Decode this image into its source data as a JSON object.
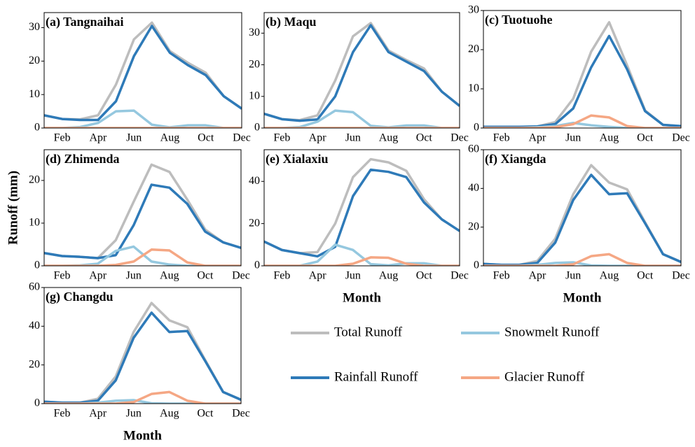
{
  "chart_data": [
    {
      "type": "line",
      "title": "(a) Tangnaihai",
      "categories": [
        null,
        "Feb",
        null,
        "Apr",
        null,
        "Jun",
        null,
        "Aug",
        null,
        "Oct",
        null,
        "Dec"
      ],
      "ylim": [
        0,
        34.5
      ],
      "yticks": [
        0,
        10,
        20,
        30
      ],
      "series": [
        {
          "name": "Total Runoff",
          "color": "#bdbdbd",
          "values": [
            3.8,
            2.7,
            2.6,
            3.8,
            13,
            26.5,
            31.5,
            23,
            19.5,
            16.5,
            9.5,
            5.8
          ]
        },
        {
          "name": "Rainfall Runoff",
          "color": "#2e7ab8",
          "values": [
            3.8,
            2.7,
            2.4,
            2.4,
            8,
            21.5,
            30.5,
            22.5,
            18.8,
            15.8,
            9.5,
            5.8
          ]
        },
        {
          "name": "Snowmelt Runoff",
          "color": "#95c8df",
          "values": [
            0,
            0,
            0.3,
            1.5,
            5,
            5.2,
            1,
            0.2,
            0.8,
            0.8,
            0,
            0
          ]
        },
        {
          "name": "Glacier Runoff",
          "color": "#f5a784",
          "values": [
            0,
            0,
            0,
            0,
            0,
            0,
            0,
            0,
            0,
            0,
            0,
            0
          ]
        }
      ]
    },
    {
      "type": "line",
      "title": "(b) Maqu",
      "categories": [
        null,
        "Feb",
        null,
        "Apr",
        null,
        "Jun",
        null,
        "Aug",
        null,
        "Oct",
        null,
        "Dec"
      ],
      "ylim": [
        0,
        36.5
      ],
      "yticks": [
        0,
        10,
        20,
        30
      ],
      "series": [
        {
          "name": "Total Runoff",
          "color": "#bdbdbd",
          "values": [
            4.5,
            2.8,
            2.5,
            4,
            15,
            29,
            33.2,
            24.5,
            21.5,
            18.8,
            11.5,
            7
          ]
        },
        {
          "name": "Rainfall Runoff",
          "color": "#2e7ab8",
          "values": [
            4.5,
            2.8,
            2.3,
            2.7,
            10,
            24,
            32.5,
            24,
            21,
            18,
            11.5,
            7
          ]
        },
        {
          "name": "Snowmelt Runoff",
          "color": "#95c8df",
          "values": [
            0,
            0,
            0.3,
            2,
            5.5,
            5,
            0.7,
            0.2,
            0.8,
            0.8,
            0,
            0
          ]
        },
        {
          "name": "Glacier Runoff",
          "color": "#f5a784",
          "values": [
            0,
            0,
            0,
            0,
            0,
            0,
            0,
            0,
            0,
            0,
            0,
            0
          ]
        }
      ]
    },
    {
      "type": "line",
      "title": "(c) Tuotuohe",
      "categories": [
        null,
        "Feb",
        null,
        "Apr",
        null,
        "Jun",
        null,
        "Aug",
        null,
        "Oct",
        null,
        "Dec"
      ],
      "ylim": [
        0,
        30
      ],
      "yticks": [
        0,
        10,
        20,
        30
      ],
      "series": [
        {
          "name": "Total Runoff",
          "color": "#bdbdbd",
          "values": [
            0.3,
            0.3,
            0.3,
            0.4,
            1.5,
            7.5,
            19.5,
            27,
            16,
            4.5,
            0.8,
            0.5
          ]
        },
        {
          "name": "Rainfall Runoff",
          "color": "#2e7ab8",
          "values": [
            0.3,
            0.3,
            0.3,
            0.4,
            1,
            5,
            15.5,
            23.5,
            15,
            4.3,
            0.8,
            0.5
          ]
        },
        {
          "name": "Snowmelt Runoff",
          "color": "#95c8df",
          "values": [
            0,
            0,
            0,
            0.2,
            0.5,
            1.3,
            0.7,
            0.3,
            0,
            0,
            0,
            0
          ]
        },
        {
          "name": "Glacier Runoff",
          "color": "#f5a784",
          "values": [
            0,
            0,
            0,
            0,
            0.2,
            1,
            3.2,
            2.7,
            0.5,
            0,
            0,
            0
          ]
        }
      ]
    },
    {
      "type": "line",
      "title": "(d) Zhimenda",
      "y_label": "Runoff (mm)",
      "categories": [
        null,
        "Feb",
        null,
        "Apr",
        null,
        "Jun",
        null,
        "Aug",
        null,
        "Oct",
        null,
        "Dec"
      ],
      "ylim": [
        0,
        27.2
      ],
      "yticks": [
        0,
        10,
        20
      ],
      "series": [
        {
          "name": "Total Runoff",
          "color": "#bdbdbd",
          "values": [
            3,
            2.3,
            2.1,
            1.8,
            6,
            15,
            23.7,
            22,
            15.5,
            8.5,
            5.5,
            4.2
          ]
        },
        {
          "name": "Rainfall Runoff",
          "color": "#2e7ab8",
          "values": [
            3,
            2.3,
            2.1,
            1.8,
            2.5,
            9.5,
            19,
            18.3,
            14.5,
            8,
            5.5,
            4.2
          ]
        },
        {
          "name": "Snowmelt Runoff",
          "color": "#95c8df",
          "values": [
            0,
            0,
            0.1,
            0.5,
            3.5,
            4.5,
            1,
            0.3,
            0,
            0,
            0,
            0
          ]
        },
        {
          "name": "Glacier Runoff",
          "color": "#f5a784",
          "values": [
            0,
            0,
            0,
            0,
            0.2,
            1,
            3.8,
            3.6,
            0.8,
            0,
            0,
            0
          ]
        }
      ]
    },
    {
      "type": "line",
      "title": "(e) Xialaxiu",
      "x_label": "Month",
      "categories": [
        null,
        "Feb",
        null,
        "Apr",
        null,
        "Jun",
        null,
        "Aug",
        null,
        "Oct",
        null,
        "Dec"
      ],
      "ylim": [
        0,
        55
      ],
      "yticks": [
        0,
        20,
        40
      ],
      "series": [
        {
          "name": "Total Runoff",
          "color": "#bdbdbd",
          "values": [
            11.5,
            7.5,
            6,
            6.5,
            20,
            42,
            50.5,
            49,
            45,
            31.5,
            22,
            16.5
          ]
        },
        {
          "name": "Rainfall Runoff",
          "color": "#2e7ab8",
          "values": [
            11.5,
            7.5,
            6,
            4.5,
            9,
            33,
            45.5,
            44.5,
            42,
            30,
            22,
            16.5
          ]
        },
        {
          "name": "Snowmelt Runoff",
          "color": "#95c8df",
          "values": [
            0,
            0,
            0,
            2,
            10,
            7.5,
            0.8,
            0.2,
            1.2,
            1.2,
            0,
            0
          ]
        },
        {
          "name": "Glacier Runoff",
          "color": "#f5a784",
          "values": [
            0,
            0,
            0,
            0,
            0,
            1,
            4,
            3.8,
            1,
            0,
            0,
            0
          ]
        }
      ]
    },
    {
      "type": "line",
      "title": "(f) Xiangda",
      "x_label": "Month",
      "categories": [
        null,
        "Feb",
        null,
        "Apr",
        null,
        "Jun",
        null,
        "Aug",
        null,
        "Oct",
        null,
        "Dec"
      ],
      "ylim": [
        0,
        60
      ],
      "yticks": [
        0,
        20,
        40,
        60
      ],
      "series": [
        {
          "name": "Total Runoff",
          "color": "#bdbdbd",
          "values": [
            1,
            0.5,
            0.5,
            2.5,
            14,
            37,
            52,
            43,
            39.5,
            22.5,
            6,
            2
          ]
        },
        {
          "name": "Rainfall Runoff",
          "color": "#2e7ab8",
          "values": [
            1,
            0.5,
            0.5,
            1.5,
            12,
            34,
            47,
            37,
            37.5,
            22,
            6,
            2
          ]
        },
        {
          "name": "Snowmelt Runoff",
          "color": "#95c8df",
          "values": [
            0,
            0,
            0,
            0.5,
            1.5,
            1.8,
            0.2,
            0,
            0,
            0,
            0,
            0
          ]
        },
        {
          "name": "Glacier Runoff",
          "color": "#f5a784",
          "values": [
            0,
            0,
            0,
            0,
            0,
            0.8,
            5,
            6,
            1.5,
            0,
            0,
            0
          ]
        }
      ]
    },
    {
      "type": "line",
      "title": "(g) Changdu",
      "x_label": "Month",
      "categories": [
        null,
        "Feb",
        null,
        "Apr",
        null,
        "Jun",
        null,
        "Aug",
        null,
        "Oct",
        null,
        "Dec"
      ],
      "ylim": [
        0,
        60
      ],
      "yticks": [
        0,
        20,
        40,
        60
      ],
      "series": [
        {
          "name": "Total Runoff",
          "color": "#bdbdbd",
          "values": [
            1,
            0.5,
            0.5,
            2.5,
            14,
            37,
            52,
            43,
            39.5,
            22.5,
            6,
            2
          ]
        },
        {
          "name": "Rainfall Runoff",
          "color": "#2e7ab8",
          "values": [
            1,
            0.5,
            0.5,
            1.5,
            12,
            34,
            47,
            37,
            37.5,
            22,
            6,
            2
          ]
        },
        {
          "name": "Snowmelt Runoff",
          "color": "#95c8df",
          "values": [
            0,
            0,
            0,
            0.5,
            1.5,
            1.8,
            0.2,
            0,
            0,
            0,
            0,
            0
          ]
        },
        {
          "name": "Glacier Runoff",
          "color": "#f5a784",
          "values": [
            0,
            0,
            0,
            0,
            0,
            0.8,
            5,
            6,
            1.5,
            0,
            0,
            0
          ]
        }
      ]
    }
  ]
}
